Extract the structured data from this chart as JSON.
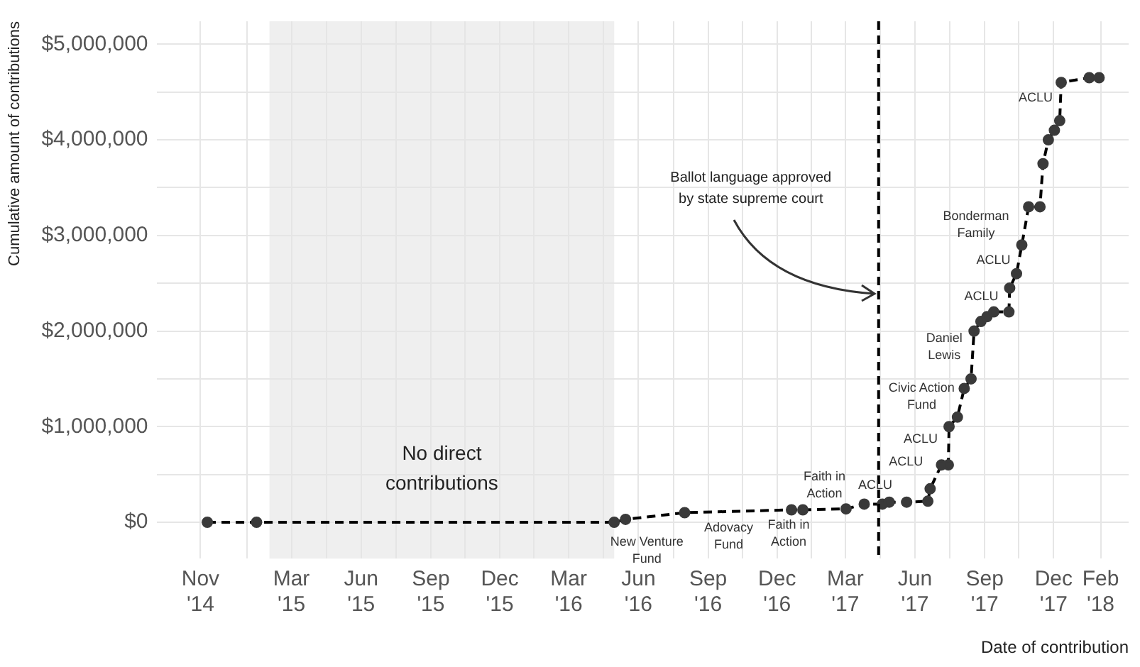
{
  "chart_data": {
    "type": "line",
    "xlabel": "Date of contribution",
    "ylabel": "Cumulative amount of contributions",
    "x": [
      "2014-11-10",
      "2015-01-14",
      "2016-04-30",
      "2016-05-15",
      "2016-08-01",
      "2016-12-20",
      "2017-01-04",
      "2017-03-02",
      "2017-03-26",
      "2017-04-19",
      "2017-04-28",
      "2017-05-21",
      "2017-06-18",
      "2017-06-21",
      "2017-07-06",
      "2017-07-15",
      "2017-07-16",
      "2017-07-27",
      "2017-08-05",
      "2017-08-14",
      "2017-08-18",
      "2017-08-27",
      "2017-09-04",
      "2017-09-13",
      "2017-10-03",
      "2017-10-04",
      "2017-10-13",
      "2017-10-20",
      "2017-10-29",
      "2017-11-13",
      "2017-11-17",
      "2017-11-24",
      "2017-12-02",
      "2017-12-09",
      "2017-12-11",
      "2018-01-17",
      "2018-01-30"
    ],
    "series": [
      {
        "color": "#000000",
        "values": [
          0,
          0,
          0,
          30000,
          100000,
          130000,
          130000,
          140000,
          190000,
          190000,
          210000,
          210000,
          220000,
          350000,
          600000,
          600000,
          1000000,
          1100000,
          1400000,
          1500000,
          2000000,
          2100000,
          2150000,
          2200000,
          2200000,
          2450000,
          2600000,
          2900000,
          3300000,
          3300000,
          3750000,
          4000000,
          4100000,
          4200000,
          4600000,
          4650000,
          4650000
        ]
      }
    ],
    "xlim": [
      "2014-09-04",
      "2018-03-10"
    ],
    "xticks": [
      {
        "value": "2014-11-01",
        "label": "Nov '14"
      },
      {
        "value": "2015-01-01",
        "label": null
      },
      {
        "value": "2015-03-01",
        "label": "Mar '15"
      },
      {
        "value": "2015-04-16",
        "label": null
      },
      {
        "value": "2015-06-01",
        "label": "Jun '15"
      },
      {
        "value": "2015-07-17",
        "label": null
      },
      {
        "value": "2015-09-01",
        "label": "Sep '15"
      },
      {
        "value": "2015-10-16",
        "label": null
      },
      {
        "value": "2015-12-01",
        "label": "Dec '15"
      },
      {
        "value": "2016-01-15",
        "label": null
      },
      {
        "value": "2016-03-01",
        "label": "Mar '16"
      },
      {
        "value": "2016-04-16",
        "label": null
      },
      {
        "value": "2016-06-01",
        "label": "Jun '16"
      },
      {
        "value": "2016-07-17",
        "label": null
      },
      {
        "value": "2016-09-01",
        "label": "Sep '16"
      },
      {
        "value": "2016-10-16",
        "label": null
      },
      {
        "value": "2016-12-01",
        "label": "Dec '16"
      },
      {
        "value": "2017-01-15",
        "label": null
      },
      {
        "value": "2017-03-01",
        "label": "Mar '17"
      },
      {
        "value": "2017-04-16",
        "label": null
      },
      {
        "value": "2017-06-01",
        "label": "Jun '17"
      },
      {
        "value": "2017-07-17",
        "label": null
      },
      {
        "value": "2017-09-01",
        "label": "Sep '17"
      },
      {
        "value": "2017-10-16",
        "label": null
      },
      {
        "value": "2017-12-01",
        "label": "Dec '17"
      },
      {
        "value": "2018-02-01",
        "label": "Feb '18"
      }
    ],
    "ylim": [
      -380000,
      5240000
    ],
    "yticks": [
      {
        "value": 0,
        "label": "$0"
      },
      {
        "value": 500000,
        "label": null
      },
      {
        "value": 1000000,
        "label": "$1,000,000"
      },
      {
        "value": 1500000,
        "label": null
      },
      {
        "value": 2000000,
        "label": "$2,000,000"
      },
      {
        "value": 2500000,
        "label": null
      },
      {
        "value": 3000000,
        "label": "$3,000,000"
      },
      {
        "value": 3500000,
        "label": null
      },
      {
        "value": 4000000,
        "label": "$4,000,000"
      },
      {
        "value": 4500000,
        "label": null
      },
      {
        "value": 5000000,
        "label": "$5,000,000"
      }
    ],
    "ref_lines": [
      {
        "axis": "x",
        "value": "2017-04-14",
        "label": "Ballot language approved by state supreme court",
        "color": "#000000",
        "line_style": "dashed"
      }
    ],
    "bands": [
      {
        "axis": "x",
        "from": "2015-01-31",
        "to": "2016-04-30",
        "label": "No direct contributions",
        "color": "#e5e5e5"
      }
    ],
    "annotations": [
      {
        "text": "New Venture Fund",
        "x": "2016-05-15",
        "y": 30000
      },
      {
        "text": "Adovacy Fund",
        "x": "2016-08-01",
        "y": 100000
      },
      {
        "text": "Faith in Action",
        "x": "2016-12-20",
        "y": 130000
      },
      {
        "text": "Faith in Action",
        "x": "2017-03-26",
        "y": 190000
      },
      {
        "text": "ACLU",
        "x": "2017-04-19",
        "y": 190000
      },
      {
        "text": "ACLU",
        "x": "2017-07-06",
        "y": 600000
      },
      {
        "text": "ACLU",
        "x": "2017-07-16",
        "y": 1000000
      },
      {
        "text": "Civic Action Fund",
        "x": "2017-08-05",
        "y": 1400000
      },
      {
        "text": "Daniel Lewis",
        "x": "2017-08-18",
        "y": 2000000
      },
      {
        "text": "ACLU",
        "x": "2017-10-04",
        "y": 2450000
      },
      {
        "text": "ACLU",
        "x": "2017-10-20",
        "y": 2900000
      },
      {
        "text": "Bonderman Family",
        "x": "2017-10-29",
        "y": 3300000
      },
      {
        "text": "ACLU",
        "x": "2017-12-11",
        "y": 4600000
      }
    ],
    "grid": true,
    "legend": false,
    "marker": "circle",
    "line_style": "dashed"
  }
}
